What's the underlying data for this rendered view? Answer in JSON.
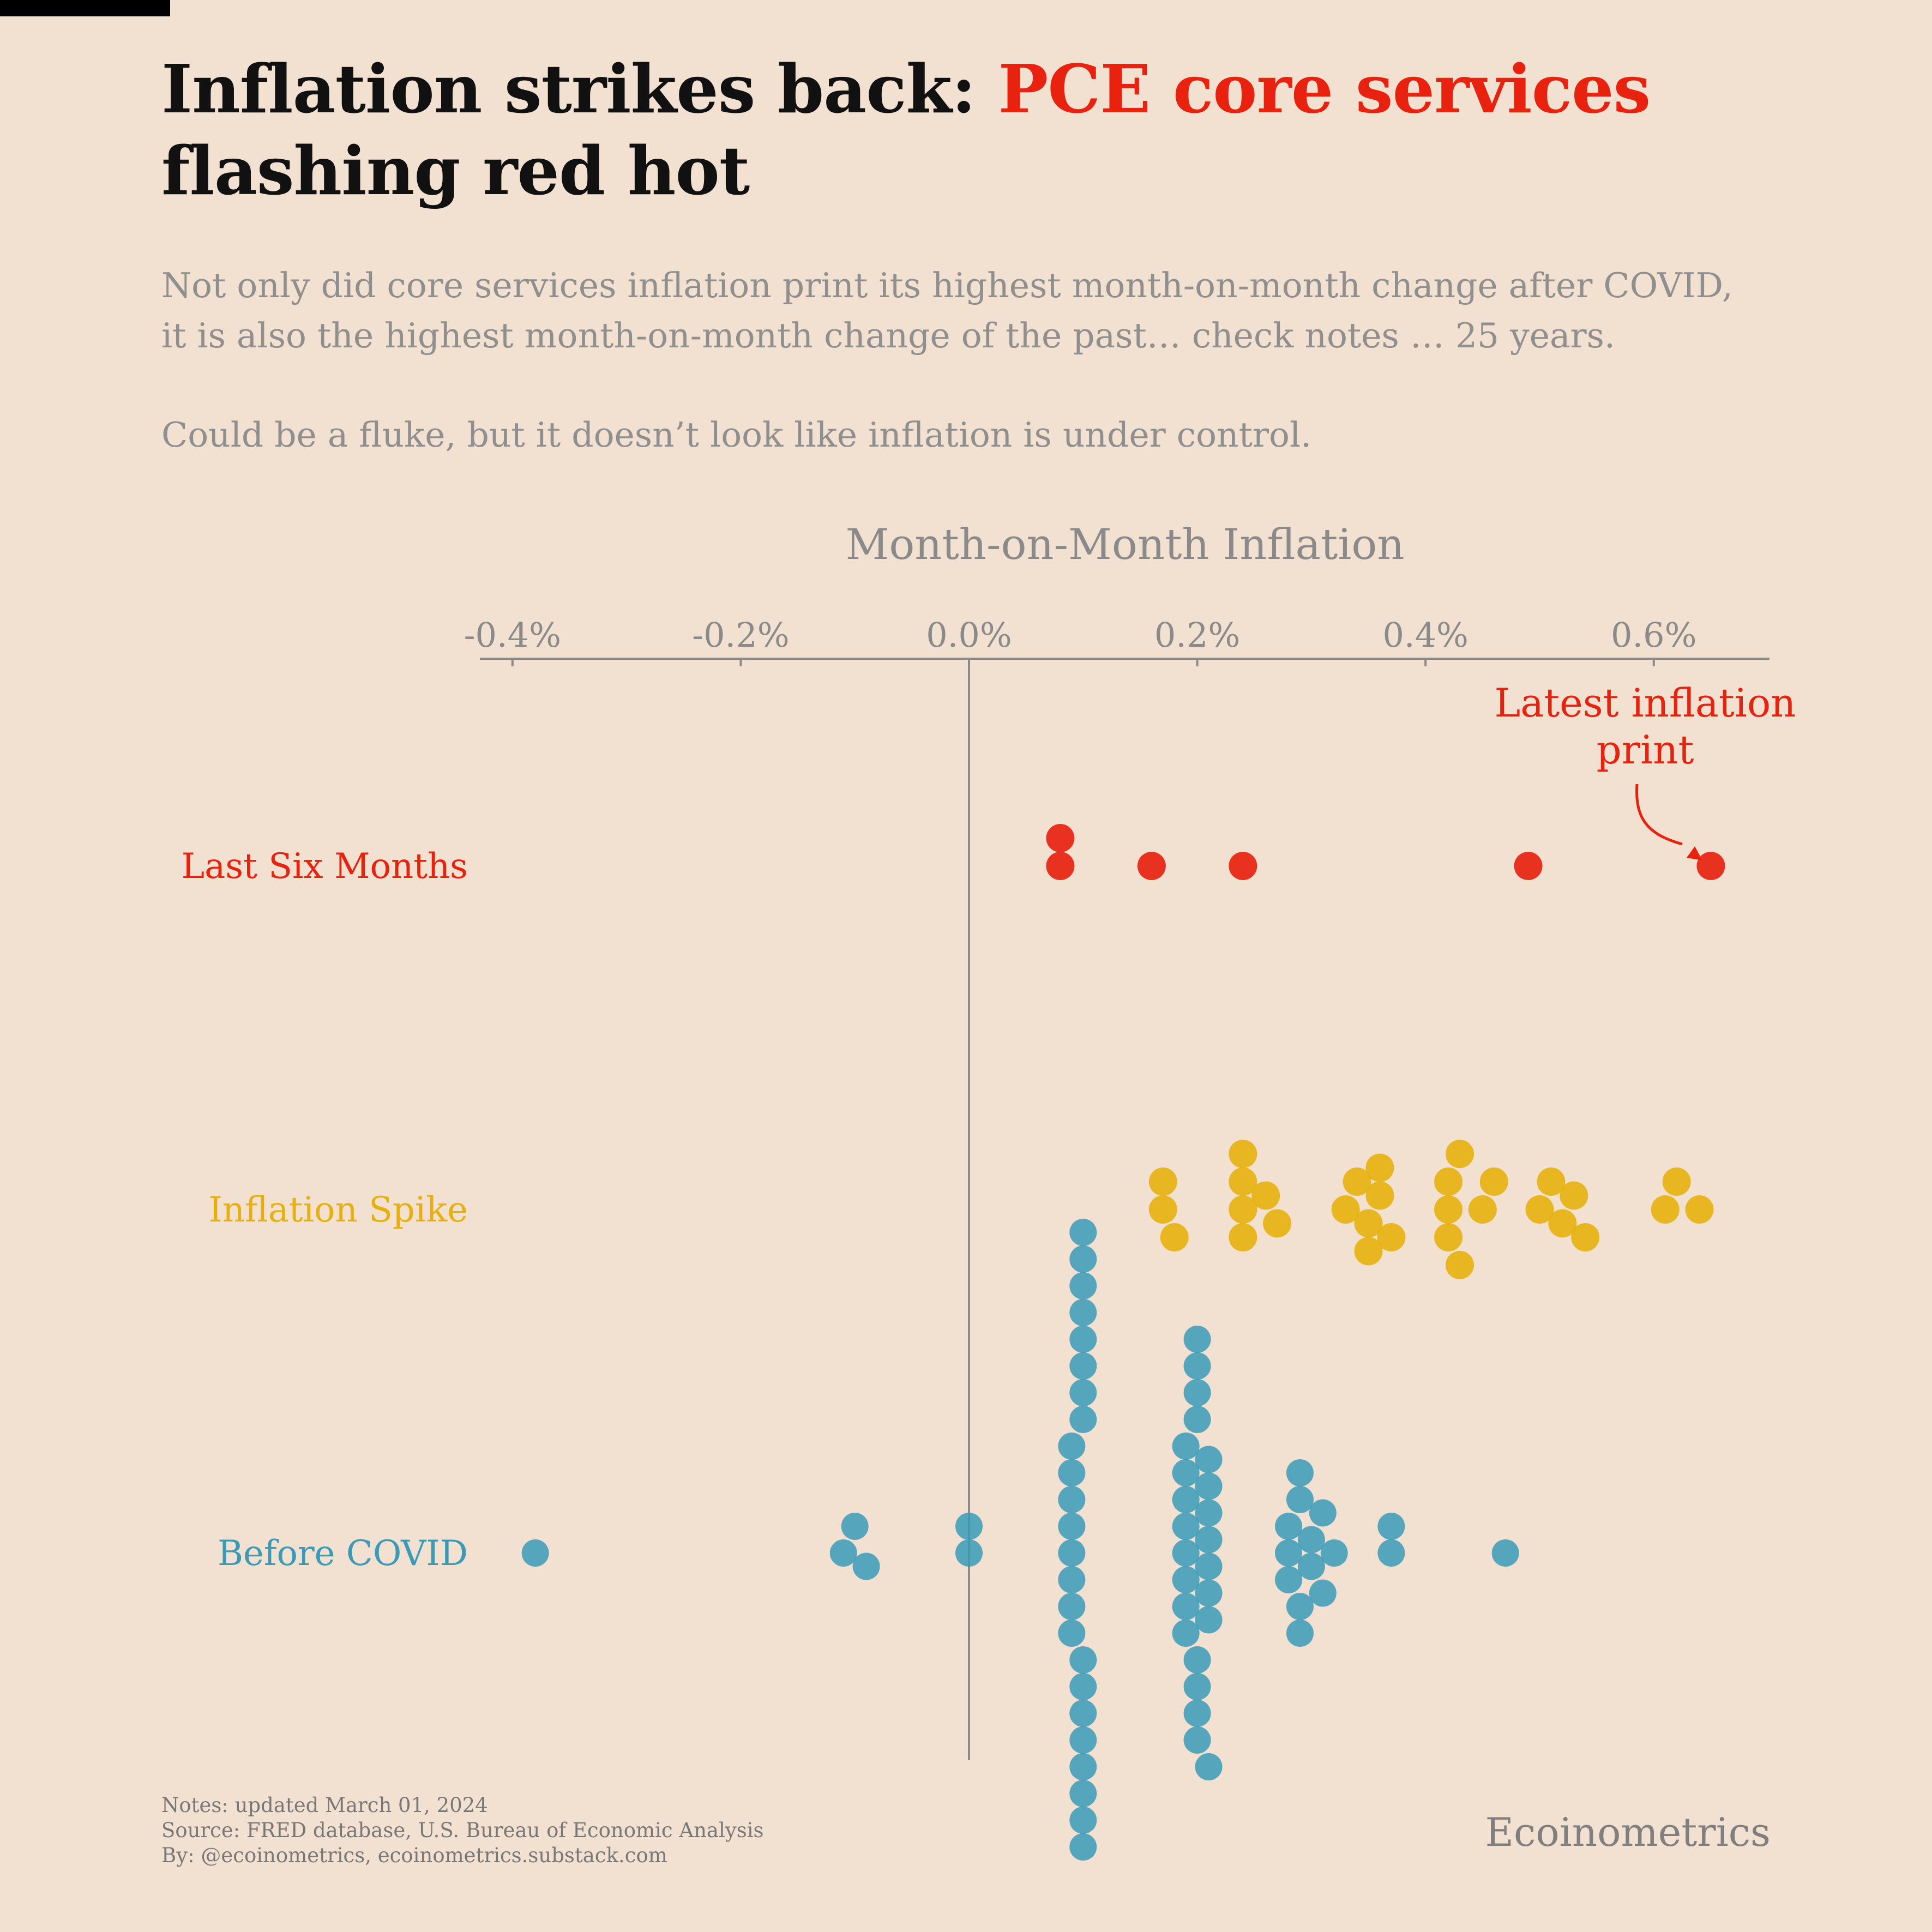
{
  "title": {
    "prefix": "Inflation strikes back: ",
    "highlight": "PCE core services",
    "line2": "flashing red hot"
  },
  "subtitle": {
    "line1": "Not only did core services inflation print its highest month-on-month change after COVID,",
    "line2": "it is also the highest month-on-month change of the past… check notes … 25 years.",
    "line3": "Could be a fluke, but it doesn’t look like inflation is under control."
  },
  "colors": {
    "background": "#f2e0d0",
    "last_six_months": "#e8220f",
    "inflation_spike": "#e6b10c",
    "before_covid": "#3a9ab8",
    "axis": "#8a8a8a"
  },
  "annotation": {
    "line1": "Latest inflation",
    "line2": "print"
  },
  "chart_data": {
    "type": "scatter",
    "subtype": "beeswarm",
    "xlabel": "Month-on-Month Inflation",
    "x_axis_position": "top",
    "xlim": [
      -0.43,
      0.7
    ],
    "xticks": [
      -0.4,
      -0.2,
      0.0,
      0.2,
      0.4,
      0.6
    ],
    "xtick_labels": [
      "-0.4%",
      "-0.2%",
      "0.0%",
      "0.2%",
      "0.4%",
      "0.6%"
    ],
    "zero_line": true,
    "grid": false,
    "legend": "none",
    "categories": [
      "Last Six Months",
      "Inflation Spike",
      "Before COVID"
    ],
    "series": [
      {
        "name": "Last Six Months",
        "values": [
          0.16,
          0.08,
          0.49,
          0.65,
          0.08,
          0.24
        ]
      },
      {
        "name": "Inflation Spike",
        "values": [
          0.36,
          0.24,
          0.34,
          0.42,
          0.46,
          0.35,
          0.53,
          0.18,
          0.43,
          0.24,
          0.64,
          0.27,
          0.51,
          0.61,
          0.17,
          0.42,
          0.62,
          0.36,
          0.45,
          0.17,
          0.24,
          0.52,
          0.33,
          0.54,
          0.42,
          0.5,
          0.24,
          0.35,
          0.43,
          0.26,
          0.37
        ]
      },
      {
        "name": "Before COVID",
        "values": [
          -0.38,
          -0.1,
          -0.11,
          -0.09,
          0.0,
          0.0,
          0.09,
          0.09,
          0.09,
          0.09,
          0.09,
          0.09,
          0.09,
          0.09,
          0.1,
          0.1,
          0.1,
          0.1,
          0.1,
          0.1,
          0.1,
          0.1,
          0.1,
          0.1,
          0.1,
          0.1,
          0.1,
          0.1,
          0.1,
          0.1,
          0.19,
          0.19,
          0.19,
          0.19,
          0.19,
          0.19,
          0.19,
          0.19,
          0.2,
          0.2,
          0.2,
          0.2,
          0.2,
          0.2,
          0.2,
          0.2,
          0.21,
          0.21,
          0.21,
          0.21,
          0.21,
          0.21,
          0.21,
          0.21,
          0.28,
          0.28,
          0.28,
          0.29,
          0.29,
          0.29,
          0.29,
          0.3,
          0.3,
          0.31,
          0.31,
          0.32,
          0.37,
          0.37,
          0.47
        ]
      }
    ]
  },
  "footer": {
    "notes": "Notes: updated March 01, 2024",
    "source": "Source: FRED database, U.S. Bureau of Economic Analysis",
    "by": "By: @ecoinometrics, ecoinometrics.substack.com",
    "brand": "Ecoinometrics"
  }
}
